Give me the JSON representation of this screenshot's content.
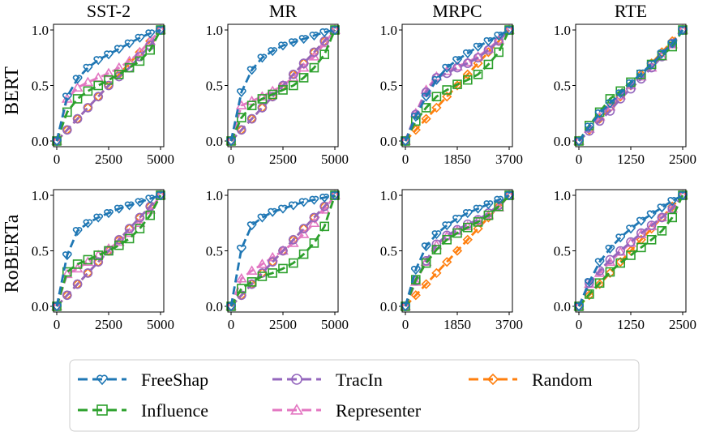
{
  "row_labels": [
    "BERT",
    "RoBERTa"
  ],
  "legend": [
    {
      "name": "FreeShap",
      "color": "#1f77b4",
      "marker": "heart"
    },
    {
      "name": "Influence",
      "color": "#2ca02c",
      "marker": "square"
    },
    {
      "name": "TracIn",
      "color": "#9467bd",
      "marker": "circle"
    },
    {
      "name": "Representer",
      "color": "#e377c2",
      "marker": "triangle"
    },
    {
      "name": "Random",
      "color": "#ff7f0e",
      "marker": "diamond"
    }
  ],
  "chart_data": [
    {
      "type": "line",
      "title": "SST-2",
      "row": "BERT",
      "xlim": [
        0,
        5000
      ],
      "ylim": [
        0,
        1
      ],
      "xticks": [
        "0",
        "2500",
        "5000"
      ],
      "yticks": [
        "0.0",
        "0.5",
        "1.0"
      ],
      "x": [
        0,
        500,
        1000,
        1500,
        2000,
        2500,
        3000,
        3500,
        4000,
        4500,
        5000
      ],
      "series": [
        {
          "name": "FreeShap",
          "values": [
            0.0,
            0.4,
            0.56,
            0.66,
            0.73,
            0.78,
            0.83,
            0.88,
            0.93,
            0.97,
            1.0
          ]
        },
        {
          "name": "Influence",
          "values": [
            0.0,
            0.26,
            0.38,
            0.45,
            0.5,
            0.55,
            0.6,
            0.66,
            0.72,
            0.82,
            1.0
          ]
        },
        {
          "name": "TracIn",
          "values": [
            0.0,
            0.1,
            0.2,
            0.3,
            0.4,
            0.5,
            0.58,
            0.66,
            0.76,
            0.86,
            1.0
          ]
        },
        {
          "name": "Representer",
          "values": [
            0.0,
            0.38,
            0.48,
            0.53,
            0.57,
            0.61,
            0.66,
            0.72,
            0.8,
            0.9,
            1.0
          ]
        },
        {
          "name": "Random",
          "values": [
            0.0,
            0.1,
            0.2,
            0.3,
            0.4,
            0.5,
            0.6,
            0.7,
            0.8,
            0.9,
            1.0
          ]
        }
      ]
    },
    {
      "type": "line",
      "title": "MR",
      "row": "BERT",
      "xlim": [
        0,
        5000
      ],
      "ylim": [
        0,
        1
      ],
      "xticks": [
        "0",
        "2500",
        "5000"
      ],
      "yticks": [
        "0.0",
        "0.5",
        "1.0"
      ],
      "x": [
        0,
        500,
        1000,
        1500,
        2000,
        2500,
        3000,
        3500,
        4000,
        4500,
        5000
      ],
      "series": [
        {
          "name": "FreeShap",
          "values": [
            0.0,
            0.44,
            0.64,
            0.75,
            0.81,
            0.86,
            0.89,
            0.92,
            0.95,
            0.98,
            1.0
          ]
        },
        {
          "name": "Influence",
          "values": [
            0.0,
            0.21,
            0.32,
            0.38,
            0.42,
            0.46,
            0.5,
            0.57,
            0.66,
            0.78,
            1.0
          ]
        },
        {
          "name": "TracIn",
          "values": [
            0.0,
            0.1,
            0.2,
            0.3,
            0.4,
            0.5,
            0.6,
            0.7,
            0.8,
            0.9,
            1.0
          ]
        },
        {
          "name": "Representer",
          "values": [
            0.0,
            0.32,
            0.36,
            0.4,
            0.45,
            0.5,
            0.57,
            0.66,
            0.76,
            0.88,
            1.0
          ]
        },
        {
          "name": "Random",
          "values": [
            0.0,
            0.1,
            0.2,
            0.3,
            0.4,
            0.5,
            0.6,
            0.7,
            0.8,
            0.9,
            1.0
          ]
        }
      ]
    },
    {
      "type": "line",
      "title": "MRPC",
      "row": "BERT",
      "xlim": [
        0,
        3700
      ],
      "ylim": [
        0,
        1
      ],
      "xticks": [
        "0",
        "1850",
        "3700"
      ],
      "yticks": [
        "0.0",
        "0.5",
        "1.0"
      ],
      "x": [
        0,
        370,
        740,
        1110,
        1480,
        1850,
        2220,
        2590,
        2960,
        3330,
        3700
      ],
      "series": [
        {
          "name": "FreeShap",
          "values": [
            0.0,
            0.22,
            0.4,
            0.55,
            0.66,
            0.73,
            0.79,
            0.85,
            0.9,
            0.95,
            1.0
          ]
        },
        {
          "name": "Influence",
          "values": [
            0.0,
            0.18,
            0.3,
            0.4,
            0.46,
            0.51,
            0.55,
            0.6,
            0.69,
            0.8,
            1.0
          ]
        },
        {
          "name": "TracIn",
          "values": [
            0.0,
            0.24,
            0.44,
            0.57,
            0.61,
            0.66,
            0.7,
            0.75,
            0.82,
            0.9,
            1.0
          ]
        },
        {
          "name": "Representer",
          "values": [
            0.0,
            0.25,
            0.46,
            0.58,
            0.63,
            0.67,
            0.71,
            0.76,
            0.83,
            0.91,
            1.0
          ]
        },
        {
          "name": "Random",
          "values": [
            0.0,
            0.1,
            0.2,
            0.3,
            0.4,
            0.5,
            0.6,
            0.7,
            0.8,
            0.9,
            1.0
          ]
        }
      ]
    },
    {
      "type": "line",
      "title": "RTE",
      "row": "BERT",
      "xlim": [
        0,
        2500
      ],
      "ylim": [
        0,
        1
      ],
      "xticks": [
        "0",
        "1250",
        "2500"
      ],
      "yticks": [
        "0.0",
        "0.5",
        "1.0"
      ],
      "x": [
        0,
        250,
        500,
        750,
        1000,
        1250,
        1500,
        1750,
        2000,
        2250,
        2500
      ],
      "series": [
        {
          "name": "FreeShap",
          "values": [
            0.0,
            0.13,
            0.25,
            0.34,
            0.43,
            0.52,
            0.61,
            0.69,
            0.79,
            0.88,
            1.0
          ]
        },
        {
          "name": "Influence",
          "values": [
            0.0,
            0.14,
            0.26,
            0.38,
            0.45,
            0.53,
            0.6,
            0.69,
            0.77,
            0.85,
            1.0
          ]
        },
        {
          "name": "TracIn",
          "values": [
            0.0,
            0.09,
            0.18,
            0.27,
            0.38,
            0.47,
            0.56,
            0.66,
            0.76,
            0.88,
            1.0
          ]
        },
        {
          "name": "Representer",
          "values": [
            0.0,
            0.11,
            0.22,
            0.31,
            0.41,
            0.5,
            0.58,
            0.66,
            0.76,
            0.87,
            1.0
          ]
        },
        {
          "name": "Random",
          "values": [
            0.0,
            0.1,
            0.2,
            0.3,
            0.4,
            0.5,
            0.6,
            0.7,
            0.8,
            0.9,
            1.0
          ]
        }
      ]
    },
    {
      "type": "line",
      "title": "",
      "row": "RoBERTa",
      "xlim": [
        0,
        5000
      ],
      "ylim": [
        0,
        1
      ],
      "xticks": [
        "0",
        "2500",
        "5000"
      ],
      "yticks": [
        "0.0",
        "0.5",
        "1.0"
      ],
      "x": [
        0,
        500,
        1000,
        1500,
        2000,
        2500,
        3000,
        3500,
        4000,
        4500,
        5000
      ],
      "series": [
        {
          "name": "FreeShap",
          "values": [
            0.0,
            0.46,
            0.68,
            0.75,
            0.8,
            0.84,
            0.88,
            0.91,
            0.94,
            0.97,
            1.0
          ]
        },
        {
          "name": "Influence",
          "values": [
            0.0,
            0.31,
            0.38,
            0.42,
            0.46,
            0.5,
            0.55,
            0.61,
            0.7,
            0.82,
            1.0
          ]
        },
        {
          "name": "TracIn",
          "values": [
            0.0,
            0.1,
            0.2,
            0.3,
            0.4,
            0.5,
            0.6,
            0.7,
            0.8,
            0.9,
            1.0
          ]
        },
        {
          "name": "Representer",
          "values": [
            0.0,
            0.29,
            0.34,
            0.4,
            0.46,
            0.52,
            0.58,
            0.66,
            0.75,
            0.87,
            1.0
          ]
        },
        {
          "name": "Random",
          "values": [
            0.0,
            0.1,
            0.2,
            0.3,
            0.4,
            0.5,
            0.6,
            0.7,
            0.8,
            0.9,
            1.0
          ]
        }
      ]
    },
    {
      "type": "line",
      "title": "",
      "row": "RoBERTa",
      "xlim": [
        0,
        5000
      ],
      "ylim": [
        0,
        1
      ],
      "xticks": [
        "0",
        "2500",
        "5000"
      ],
      "yticks": [
        "0.0",
        "0.5",
        "1.0"
      ],
      "x": [
        0,
        500,
        1000,
        1500,
        2000,
        2500,
        3000,
        3500,
        4000,
        4500,
        5000
      ],
      "series": [
        {
          "name": "FreeShap",
          "values": [
            0.0,
            0.52,
            0.73,
            0.8,
            0.85,
            0.88,
            0.91,
            0.94,
            0.96,
            0.98,
            1.0
          ]
        },
        {
          "name": "Influence",
          "values": [
            0.0,
            0.16,
            0.22,
            0.27,
            0.3,
            0.34,
            0.39,
            0.47,
            0.57,
            0.72,
            1.0
          ]
        },
        {
          "name": "TracIn",
          "values": [
            0.0,
            0.1,
            0.2,
            0.3,
            0.4,
            0.5,
            0.6,
            0.7,
            0.8,
            0.9,
            1.0
          ]
        },
        {
          "name": "Representer",
          "values": [
            0.0,
            0.25,
            0.32,
            0.38,
            0.44,
            0.5,
            0.57,
            0.65,
            0.75,
            0.87,
            1.0
          ]
        },
        {
          "name": "Random",
          "values": [
            0.0,
            0.1,
            0.2,
            0.3,
            0.4,
            0.5,
            0.6,
            0.7,
            0.8,
            0.9,
            1.0
          ]
        }
      ]
    },
    {
      "type": "line",
      "title": "",
      "row": "RoBERTa",
      "xlim": [
        0,
        3700
      ],
      "ylim": [
        0,
        1
      ],
      "xticks": [
        "0",
        "1850",
        "3700"
      ],
      "yticks": [
        "0.0",
        "0.5",
        "1.0"
      ],
      "x": [
        0,
        370,
        740,
        1110,
        1480,
        1850,
        2220,
        2590,
        2960,
        3330,
        3700
      ],
      "series": [
        {
          "name": "FreeShap",
          "values": [
            0.0,
            0.33,
            0.54,
            0.65,
            0.73,
            0.79,
            0.84,
            0.88,
            0.92,
            0.96,
            1.0
          ]
        },
        {
          "name": "Influence",
          "values": [
            0.0,
            0.24,
            0.39,
            0.51,
            0.6,
            0.66,
            0.71,
            0.76,
            0.82,
            0.9,
            1.0
          ]
        },
        {
          "name": "TracIn",
          "values": [
            0.0,
            0.23,
            0.41,
            0.56,
            0.64,
            0.69,
            0.74,
            0.78,
            0.84,
            0.91,
            1.0
          ]
        },
        {
          "name": "Representer",
          "values": [
            0.0,
            0.22,
            0.4,
            0.55,
            0.63,
            0.68,
            0.72,
            0.77,
            0.82,
            0.89,
            1.0
          ]
        },
        {
          "name": "Random",
          "values": [
            0.0,
            0.1,
            0.2,
            0.3,
            0.4,
            0.5,
            0.6,
            0.7,
            0.8,
            0.9,
            1.0
          ]
        }
      ]
    },
    {
      "type": "line",
      "title": "",
      "row": "RoBERTa",
      "xlim": [
        0,
        2500
      ],
      "ylim": [
        0,
        1
      ],
      "xticks": [
        "0",
        "1250",
        "2500"
      ],
      "yticks": [
        "0.0",
        "0.5",
        "1.0"
      ],
      "x": [
        0,
        250,
        500,
        750,
        1000,
        1250,
        1500,
        1750,
        2000,
        2250,
        2500
      ],
      "series": [
        {
          "name": "FreeShap",
          "values": [
            0.0,
            0.22,
            0.4,
            0.52,
            0.62,
            0.7,
            0.77,
            0.83,
            0.89,
            0.95,
            1.0
          ]
        },
        {
          "name": "Influence",
          "values": [
            0.0,
            0.11,
            0.21,
            0.31,
            0.39,
            0.46,
            0.53,
            0.6,
            0.68,
            0.8,
            1.0
          ]
        },
        {
          "name": "TracIn",
          "values": [
            0.0,
            0.21,
            0.32,
            0.42,
            0.5,
            0.58,
            0.66,
            0.73,
            0.8,
            0.88,
            1.0
          ]
        },
        {
          "name": "Representer",
          "values": [
            0.0,
            0.2,
            0.3,
            0.4,
            0.49,
            0.57,
            0.65,
            0.72,
            0.8,
            0.88,
            1.0
          ]
        },
        {
          "name": "Random",
          "values": [
            0.0,
            0.1,
            0.2,
            0.3,
            0.4,
            0.5,
            0.6,
            0.7,
            0.8,
            0.9,
            1.0
          ]
        }
      ]
    }
  ]
}
